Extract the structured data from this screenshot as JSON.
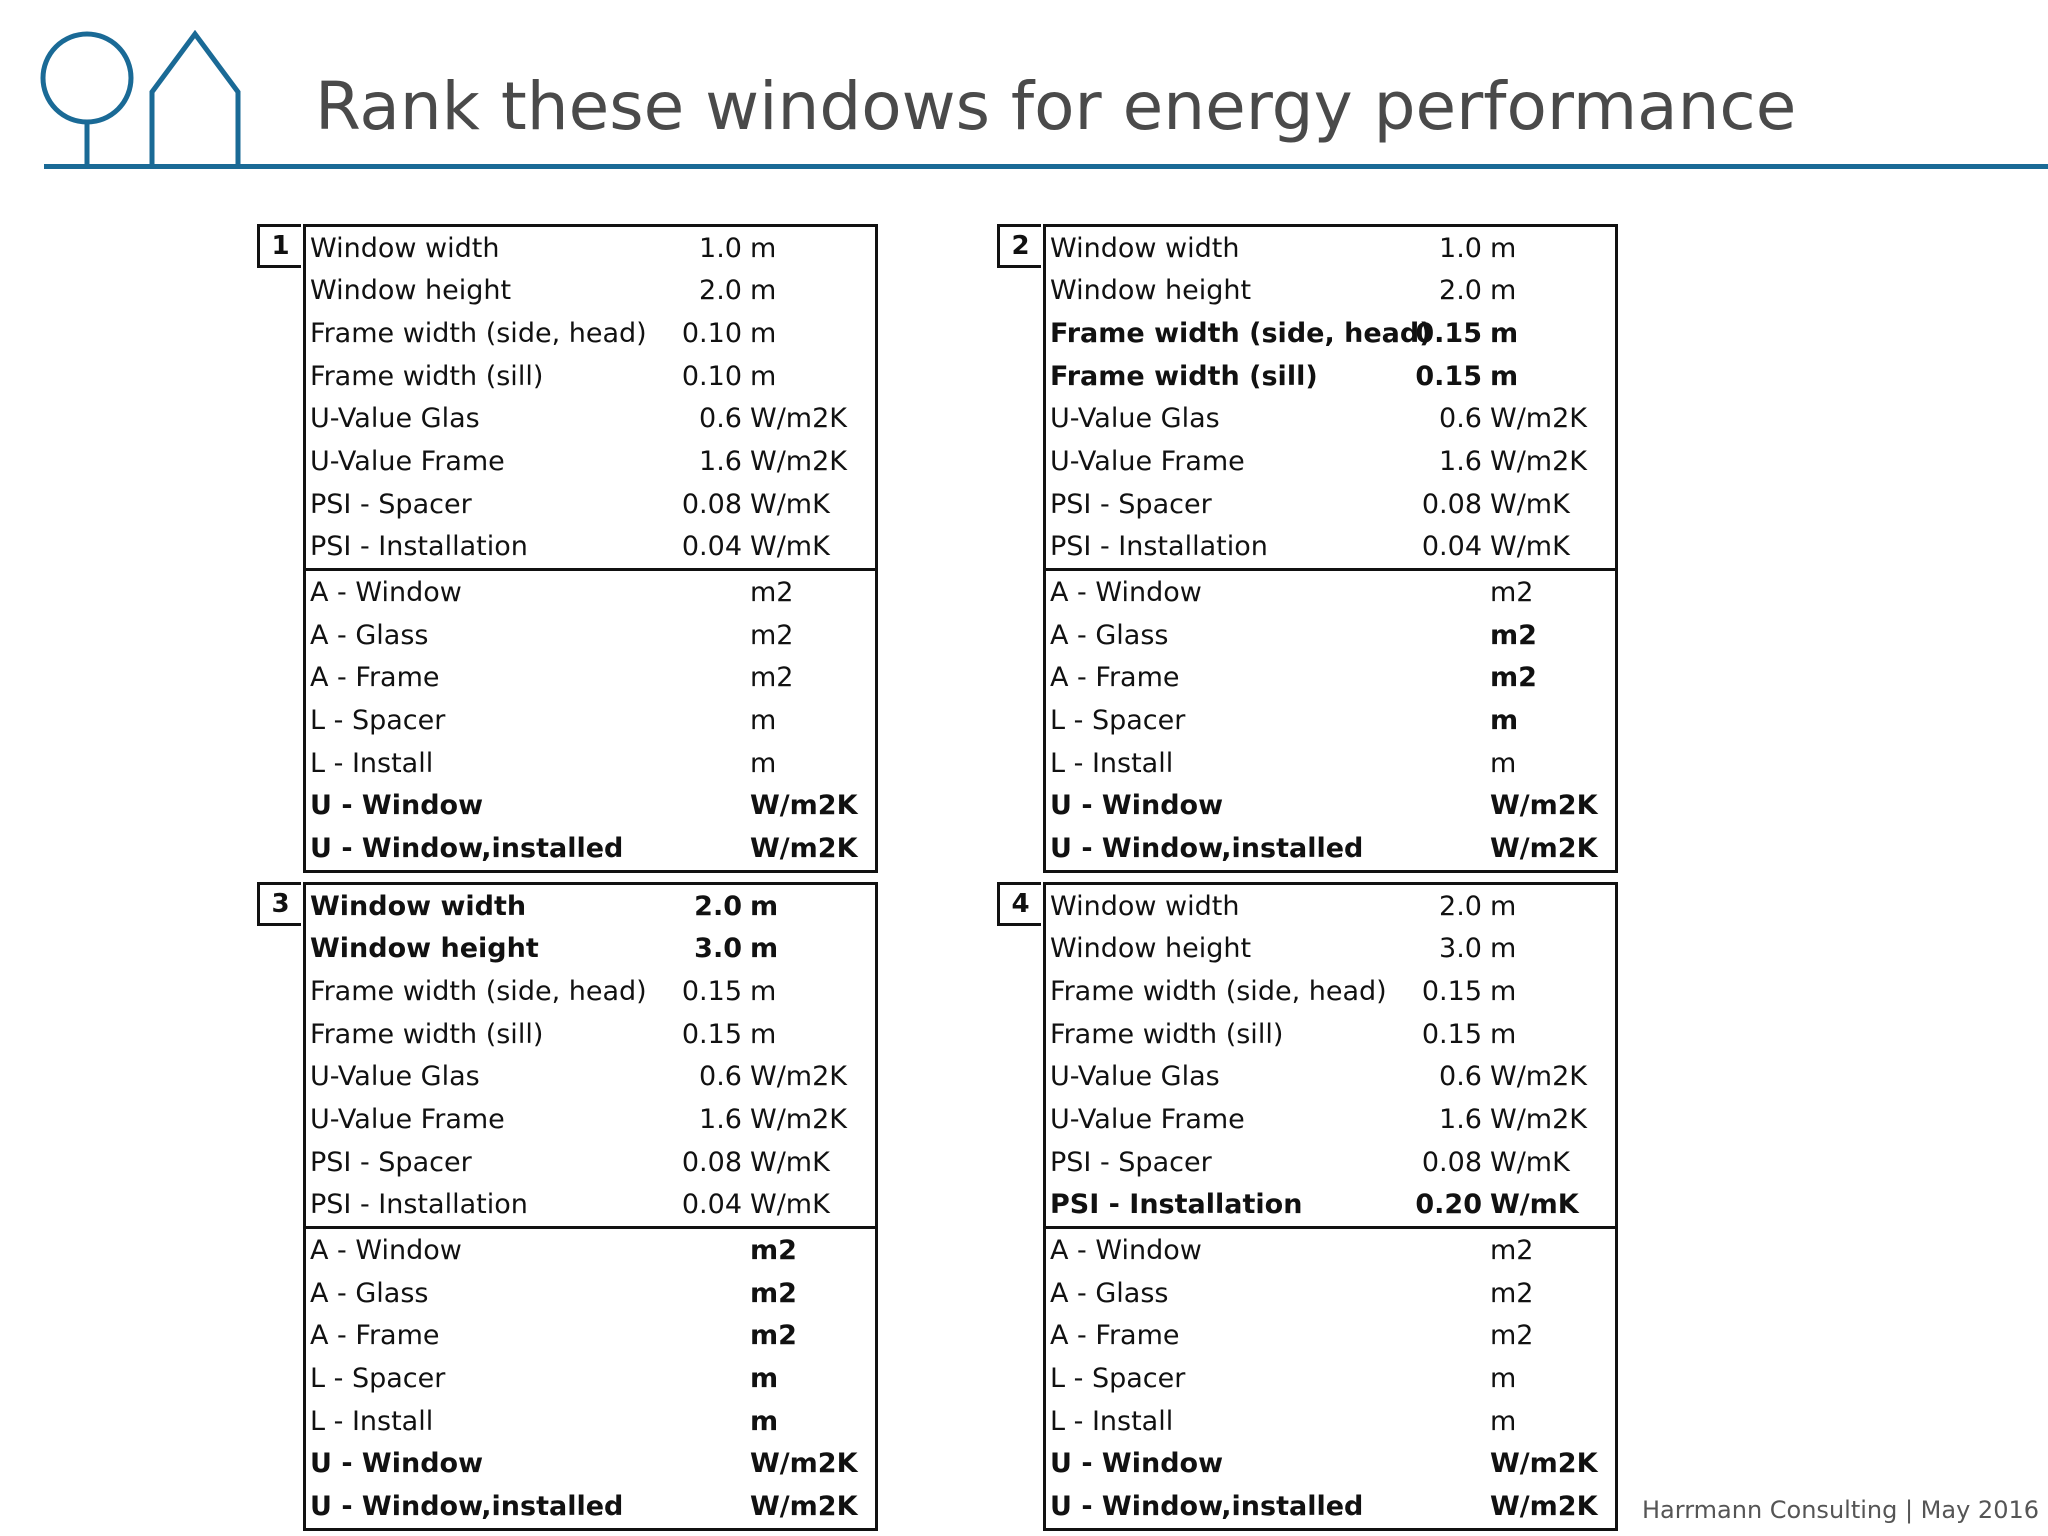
{
  "title": "Rank these windows for energy performance",
  "footer": "Harrmann Consulting | May 2016",
  "brand_color": "#1a6a96",
  "logo": {
    "icons": [
      "tree-icon",
      "house-icon"
    ]
  },
  "windows": [
    {
      "number": "1",
      "inputs": [
        {
          "label": "Window width",
          "value": "1.0",
          "unit": "m",
          "bold": false
        },
        {
          "label": "Window height",
          "value": "2.0",
          "unit": "m",
          "bold": false
        },
        {
          "label": "Frame width (side, head)",
          "value": "0.10",
          "unit": "m",
          "bold": false
        },
        {
          "label": "Frame width (sill)",
          "value": "0.10",
          "unit": "m",
          "bold": false
        },
        {
          "label": "U-Value Glas",
          "value": "0.6",
          "unit": "W/m2K",
          "bold": false
        },
        {
          "label": "U-Value Frame",
          "value": "1.6",
          "unit": "W/m2K",
          "bold": false
        },
        {
          "label": "PSI - Spacer",
          "value": "0.08",
          "unit": "W/mK",
          "bold": false
        },
        {
          "label": "PSI - Installation",
          "value": "0.04",
          "unit": "W/mK",
          "bold": false
        }
      ],
      "outputs": [
        {
          "label": "A - Window",
          "unit": "m2",
          "bold": false,
          "unit_bold": false
        },
        {
          "label": "A - Glass",
          "unit": "m2",
          "bold": false,
          "unit_bold": false
        },
        {
          "label": "A - Frame",
          "unit": "m2",
          "bold": false,
          "unit_bold": false
        },
        {
          "label": "L - Spacer",
          "unit": "m",
          "bold": false,
          "unit_bold": false
        },
        {
          "label": "L - Install",
          "unit": "m",
          "bold": false,
          "unit_bold": false
        },
        {
          "label": "U - Window",
          "unit": "W/m2K",
          "bold": true,
          "unit_bold": true
        },
        {
          "label": "U - Window,installed",
          "unit": "W/m2K",
          "bold": true,
          "unit_bold": true
        }
      ]
    },
    {
      "number": "2",
      "inputs": [
        {
          "label": "Window width",
          "value": "1.0",
          "unit": "m",
          "bold": false
        },
        {
          "label": "Window height",
          "value": "2.0",
          "unit": "m",
          "bold": false
        },
        {
          "label": "Frame width (side, head)",
          "value": "0.15",
          "unit": "m",
          "bold": true
        },
        {
          "label": "Frame width (sill)",
          "value": "0.15",
          "unit": "m",
          "bold": true
        },
        {
          "label": "U-Value Glas",
          "value": "0.6",
          "unit": "W/m2K",
          "bold": false
        },
        {
          "label": "U-Value Frame",
          "value": "1.6",
          "unit": "W/m2K",
          "bold": false
        },
        {
          "label": "PSI - Spacer",
          "value": "0.08",
          "unit": "W/mK",
          "bold": false
        },
        {
          "label": "PSI - Installation",
          "value": "0.04",
          "unit": "W/mK",
          "bold": false
        }
      ],
      "outputs": [
        {
          "label": "A - Window",
          "unit": "m2",
          "bold": false,
          "unit_bold": false
        },
        {
          "label": "A - Glass",
          "unit": "m2",
          "bold": false,
          "unit_bold": true
        },
        {
          "label": "A - Frame",
          "unit": "m2",
          "bold": false,
          "unit_bold": true
        },
        {
          "label": "L - Spacer",
          "unit": "m",
          "bold": false,
          "unit_bold": true
        },
        {
          "label": "L - Install",
          "unit": "m",
          "bold": false,
          "unit_bold": false
        },
        {
          "label": "U - Window",
          "unit": "W/m2K",
          "bold": true,
          "unit_bold": true
        },
        {
          "label": "U - Window,installed",
          "unit": "W/m2K",
          "bold": true,
          "unit_bold": true
        }
      ]
    },
    {
      "number": "3",
      "inputs": [
        {
          "label": "Window width",
          "value": "2.0",
          "unit": "m",
          "bold": true
        },
        {
          "label": "Window height",
          "value": "3.0",
          "unit": "m",
          "bold": true
        },
        {
          "label": "Frame width (side, head)",
          "value": "0.15",
          "unit": "m",
          "bold": false
        },
        {
          "label": "Frame width (sill)",
          "value": "0.15",
          "unit": "m",
          "bold": false
        },
        {
          "label": "U-Value Glas",
          "value": "0.6",
          "unit": "W/m2K",
          "bold": false
        },
        {
          "label": "U-Value Frame",
          "value": "1.6",
          "unit": "W/m2K",
          "bold": false
        },
        {
          "label": "PSI - Spacer",
          "value": "0.08",
          "unit": "W/mK",
          "bold": false
        },
        {
          "label": "PSI - Installation",
          "value": "0.04",
          "unit": "W/mK",
          "bold": false
        }
      ],
      "outputs": [
        {
          "label": "A - Window",
          "unit": "m2",
          "bold": false,
          "unit_bold": true
        },
        {
          "label": "A - Glass",
          "unit": "m2",
          "bold": false,
          "unit_bold": true
        },
        {
          "label": "A - Frame",
          "unit": "m2",
          "bold": false,
          "unit_bold": true
        },
        {
          "label": "L - Spacer",
          "unit": "m",
          "bold": false,
          "unit_bold": true
        },
        {
          "label": "L - Install",
          "unit": "m",
          "bold": false,
          "unit_bold": true
        },
        {
          "label": "U - Window",
          "unit": "W/m2K",
          "bold": true,
          "unit_bold": true
        },
        {
          "label": "U - Window,installed",
          "unit": "W/m2K",
          "bold": true,
          "unit_bold": true
        }
      ]
    },
    {
      "number": "4",
      "inputs": [
        {
          "label": "Window width",
          "value": "2.0",
          "unit": "m",
          "bold": false
        },
        {
          "label": "Window height",
          "value": "3.0",
          "unit": "m",
          "bold": false
        },
        {
          "label": "Frame width (side, head)",
          "value": "0.15",
          "unit": "m",
          "bold": false
        },
        {
          "label": "Frame width (sill)",
          "value": "0.15",
          "unit": "m",
          "bold": false
        },
        {
          "label": "U-Value Glas",
          "value": "0.6",
          "unit": "W/m2K",
          "bold": false
        },
        {
          "label": "U-Value Frame",
          "value": "1.6",
          "unit": "W/m2K",
          "bold": false
        },
        {
          "label": "PSI - Spacer",
          "value": "0.08",
          "unit": "W/mK",
          "bold": false
        },
        {
          "label": "PSI - Installation",
          "value": "0.20",
          "unit": "W/mK",
          "bold": true
        }
      ],
      "outputs": [
        {
          "label": "A - Window",
          "unit": "m2",
          "bold": false,
          "unit_bold": false
        },
        {
          "label": "A - Glass",
          "unit": "m2",
          "bold": false,
          "unit_bold": false
        },
        {
          "label": "A - Frame",
          "unit": "m2",
          "bold": false,
          "unit_bold": false
        },
        {
          "label": "L - Spacer",
          "unit": "m",
          "bold": false,
          "unit_bold": false
        },
        {
          "label": "L - Install",
          "unit": "m",
          "bold": false,
          "unit_bold": false
        },
        {
          "label": "U - Window",
          "unit": "W/m2K",
          "bold": true,
          "unit_bold": true
        },
        {
          "label": "U - Window,installed",
          "unit": "W/m2K",
          "bold": true,
          "unit_bold": true
        }
      ]
    }
  ]
}
